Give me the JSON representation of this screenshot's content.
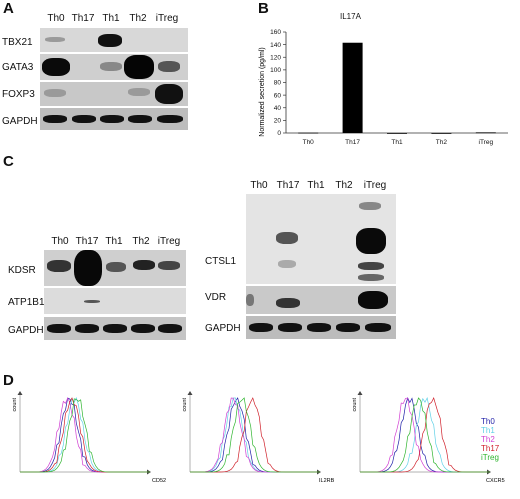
{
  "panels": {
    "a": "A",
    "b": "B",
    "c": "C",
    "d": "D"
  },
  "panel_a": {
    "lanes": [
      "Th0",
      "Th17",
      "Th1",
      "Th2",
      "iTreg"
    ],
    "rows": [
      "TBX21",
      "GATA3",
      "FOXP3",
      "GAPDH"
    ]
  },
  "panel_c_left": {
    "lanes": [
      "Th0",
      "Th17",
      "Th1",
      "Th2",
      "iTreg"
    ],
    "rows": [
      "KDSR",
      "ATP1B1",
      "GAPDH"
    ]
  },
  "panel_c_right": {
    "lanes": [
      "Th0",
      "Th17",
      "Th1",
      "Th2",
      "iTreg"
    ],
    "rows": [
      "CTSL1",
      "VDR",
      "GAPDH"
    ]
  },
  "chart_data": {
    "type": "bar",
    "title": "IL17A",
    "ylabel": "Normalized secretion (pg/ml)",
    "xlabel": "",
    "categories": [
      "Th0",
      "Th17",
      "Th1",
      "Th2",
      "iTreg"
    ],
    "values": [
      0.5,
      143,
      0,
      0,
      1
    ],
    "ylim": [
      0,
      160
    ],
    "yticks": [
      0,
      20,
      40,
      60,
      80,
      100,
      120,
      140,
      160
    ],
    "bar_color": "#000000"
  },
  "panel_d": {
    "y_label": "count",
    "x_labels": [
      "CD52",
      "IL2RB",
      "CXCR5"
    ],
    "legend": [
      {
        "name": "Th0",
        "color": "#1f1fa8"
      },
      {
        "name": "Th1",
        "color": "#5fd0e6"
      },
      {
        "name": "Th2",
        "color": "#d23fd2"
      },
      {
        "name": "Th17",
        "color": "#d0202a"
      },
      {
        "name": "iTreg",
        "color": "#2fb52f"
      }
    ]
  }
}
